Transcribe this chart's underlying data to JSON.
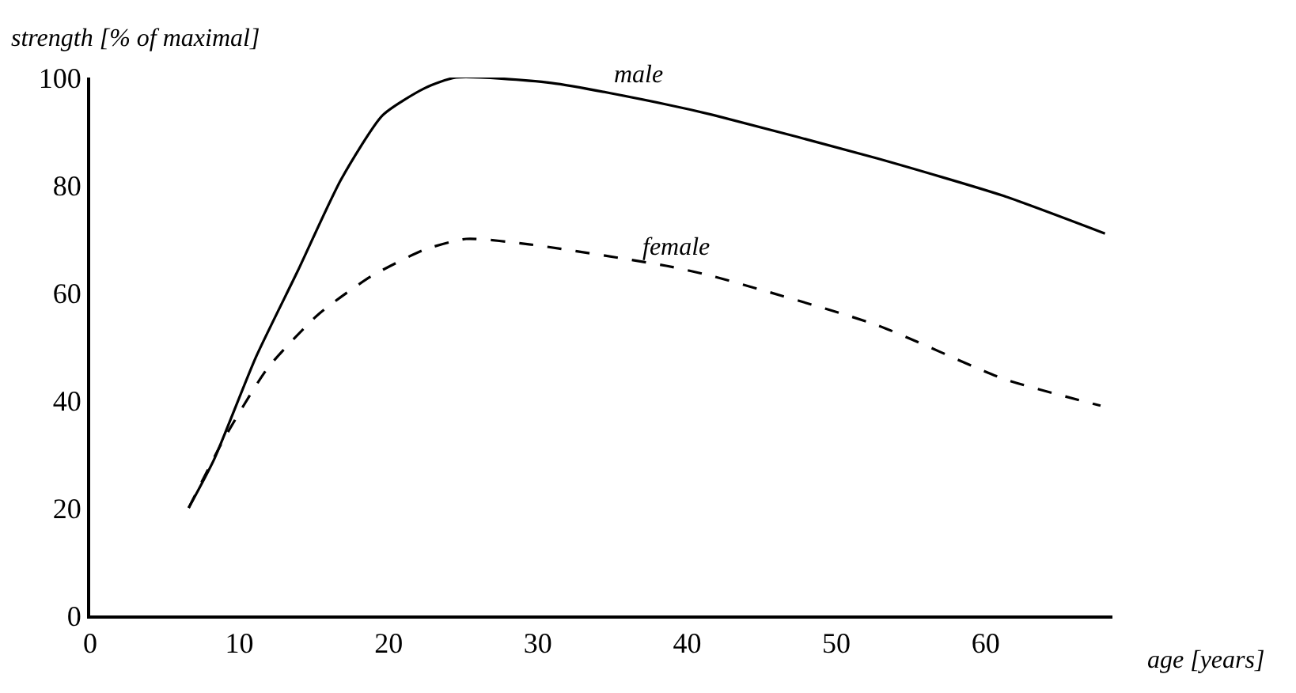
{
  "chart_data": {
    "type": "line",
    "xlabel": "age [years]",
    "ylabel": "strength [% of maximal]",
    "xlim": [
      0,
      68.5
    ],
    "ylim": [
      0,
      100
    ],
    "xticks": [
      0,
      10,
      20,
      30,
      40,
      50,
      60
    ],
    "yticks": [
      0,
      20,
      40,
      60,
      80,
      100
    ],
    "legend": false,
    "marker": "none",
    "series": [
      {
        "name": "male",
        "color": "#000000",
        "line_style": "solid",
        "x": [
          6.6,
          8.3,
          11.1,
          13.9,
          16.8,
          19.6,
          22.4,
          24.5,
          30.9,
          38.6,
          41.8,
          52.7,
          61.2,
          68.0
        ],
        "values": [
          20,
          29,
          48,
          64,
          81,
          93,
          98,
          100,
          99,
          95,
          93,
          85,
          78,
          71
        ]
      },
      {
        "name": "female",
        "color": "#000000",
        "line_style": "dashed",
        "x": [
          6.6,
          9.0,
          11.9,
          15.3,
          18.8,
          22.4,
          25.2,
          29.4,
          38.6,
          41.8,
          52.7,
          61.2,
          67.7
        ],
        "values": [
          20,
          33,
          46,
          56,
          63,
          68,
          70,
          69,
          65,
          63,
          54,
          44,
          39
        ]
      }
    ]
  }
}
